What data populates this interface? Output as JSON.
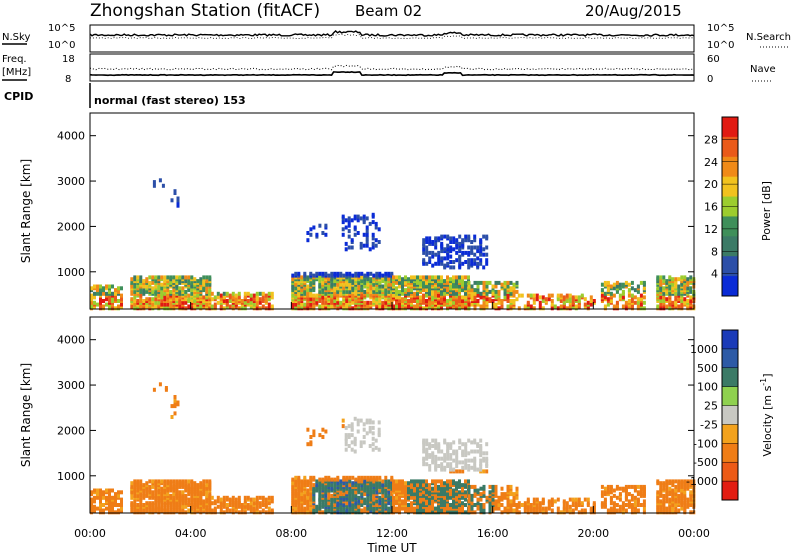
{
  "header": {
    "station": "Zhongshan Station (fitACF)",
    "beam": "Beam 02",
    "date": "20/Aug/2015"
  },
  "top_panel": {
    "left_label": "N.Sky",
    "right_label": "N.Search",
    "left_ticks": [
      "10^5",
      "10^0"
    ],
    "right_ticks": [
      "10^5",
      "10^0"
    ]
  },
  "freq_panel": {
    "left_label_1": "Freq.",
    "left_label_2": "[MHz]",
    "right_label": "Nave",
    "left_ticks": [
      "18",
      "8"
    ],
    "right_ticks": [
      "60",
      "0"
    ]
  },
  "cpid": {
    "label": "CPID",
    "text": "normal (fast stereo) 153"
  },
  "x_axis": {
    "ticks": [
      "00:00",
      "04:00",
      "08:00",
      "12:00",
      "16:00",
      "20:00",
      "00:00"
    ],
    "label": "Time UT"
  },
  "colors": {
    "power": [
      "#0a2bd6",
      "#2c4fa8",
      "#3b7a66",
      "#3f8f5a",
      "#9ccd2e",
      "#f2c21e",
      "#f08a18",
      "#ea5a1a",
      "#e11b12"
    ],
    "velocity": [
      "#1a3ab8",
      "#2d5aa6",
      "#3b7a66",
      "#8fd14f",
      "#c8c8c2",
      "#f3a21c",
      "#ef7d16",
      "#ec5a16",
      "#e41d12"
    ]
  },
  "chart_data": [
    {
      "type": "line",
      "panel": "noise",
      "series": [
        {
          "name": "N.Sky"
        },
        {
          "name": "N.Search"
        }
      ]
    },
    {
      "type": "line",
      "panel": "frequency",
      "series": [
        {
          "name": "Freq."
        },
        {
          "name": "Nave"
        }
      ]
    },
    {
      "type": "heatmap",
      "panel": "power",
      "ylabel": "Slant Range [km]",
      "xlabel": "Time UT",
      "x_range_hours": [
        0,
        24
      ],
      "ylim": [
        180,
        4500
      ],
      "yticks": [
        1000,
        2000,
        3000,
        4000
      ],
      "colorbar_label": "Power [dB]",
      "colorbar_ticks": [
        4,
        8,
        12,
        16,
        20,
        24,
        28
      ],
      "colorbar_range": [
        0,
        32
      ]
    },
    {
      "type": "heatmap",
      "panel": "velocity",
      "ylabel": "Slant Range [km]",
      "xlabel": "Time UT",
      "x_range_hours": [
        0,
        24
      ],
      "ylim": [
        180,
        4500
      ],
      "yticks": [
        1000,
        2000,
        3000,
        4000
      ],
      "colorbar_label": "Velocity [m s^-1]",
      "colorbar_ticks": [
        "1000",
        "500",
        "100",
        "25",
        "-25",
        "-100",
        "-500",
        "-1000"
      ]
    }
  ]
}
